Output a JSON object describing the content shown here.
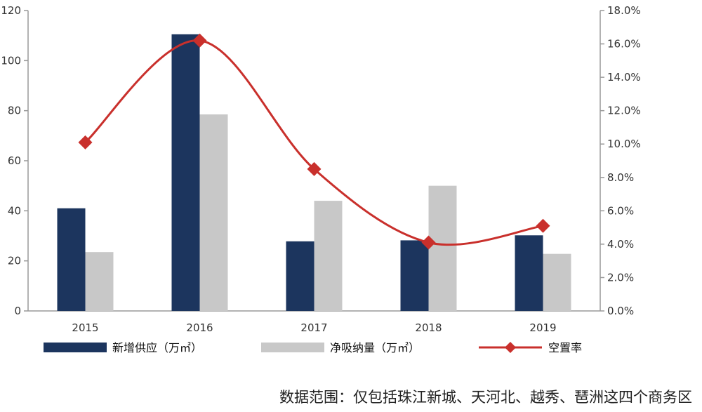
{
  "chart_data": {
    "type": "bar",
    "categories": [
      "2015",
      "2016",
      "2017",
      "2018",
      "2019"
    ],
    "series": [
      {
        "name": "新增供应（万㎡）",
        "kind": "bar",
        "axis": "left",
        "color": "#1c355e",
        "values": [
          41,
          110.5,
          27.8,
          28.2,
          30.2
        ]
      },
      {
        "name": "净吸纳量（万㎡）",
        "kind": "bar",
        "axis": "left",
        "color": "#c8c8c8",
        "values": [
          23.5,
          78.5,
          44,
          50,
          22.8
        ]
      },
      {
        "name": "空置率",
        "kind": "line",
        "axis": "right",
        "color": "#c9302c",
        "values": [
          10.1,
          16.2,
          8.5,
          4.1,
          5.1
        ]
      }
    ],
    "y_left": {
      "min": 0,
      "max": 120,
      "step": 20
    },
    "y_right": {
      "min": 0,
      "max": 18,
      "step": 2,
      "format": "percent_1dp"
    },
    "legend_position": "bottom"
  },
  "note": "数据范围：仅包括珠江新城、天河北、越秀、琶洲这四个商务区"
}
